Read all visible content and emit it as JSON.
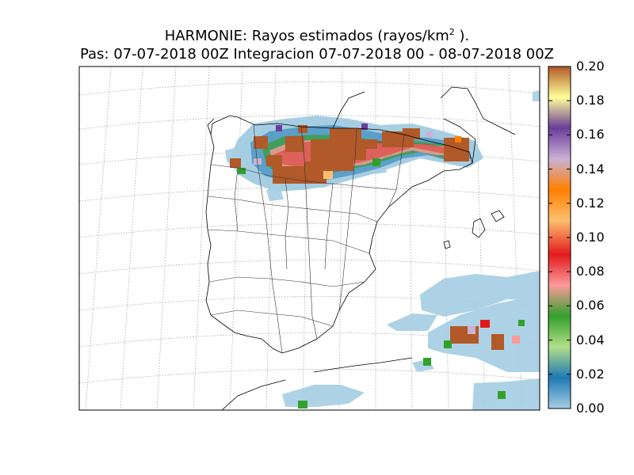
{
  "title": {
    "line1_prefix": "HARMONIE: Rayos estimados  (rayos/km",
    "line1_sup": "2",
    "line1_suffix": " ).",
    "line2": "Pas: 07-07-2018 00Z Integracion 07-07-2018 00 - 08-07-2018 00Z"
  },
  "colorbar": {
    "min": 0.0,
    "max": 0.2,
    "tick_labels": [
      "0.00",
      "0.02",
      "0.04",
      "0.06",
      "0.08",
      "0.10",
      "0.12",
      "0.14",
      "0.16",
      "0.18",
      "0.20"
    ],
    "colors": [
      "#a6cee3",
      "#1f78b4",
      "#b2df8a",
      "#33a02c",
      "#fb9a99",
      "#e31a1c",
      "#fdbf6f",
      "#ff7f00",
      "#cab2d6",
      "#6a3d9a",
      "#ffff99",
      "#b15928"
    ]
  },
  "colors": {
    "coast": "#000000",
    "graticule": "#9a9a9a",
    "dominant_field": "#b15928",
    "light_field": "#a6cee3"
  }
}
